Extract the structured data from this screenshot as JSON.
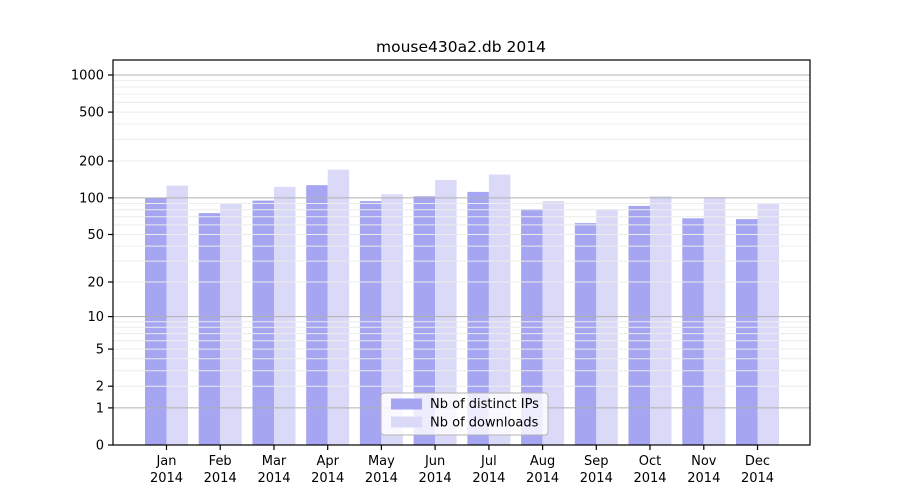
{
  "page": {
    "background": "#ffffff"
  },
  "chart_data": {
    "type": "bar",
    "title": "mouse430a2.db 2014",
    "x": {
      "months": [
        "Jan",
        "Feb",
        "Mar",
        "Apr",
        "May",
        "Jun",
        "Jul",
        "Aug",
        "Sep",
        "Oct",
        "Nov",
        "Dec"
      ],
      "year": "2014"
    },
    "series": [
      {
        "name": "Nb of distinct IPs",
        "color": "#a5a5f2",
        "values": [
          100,
          75,
          95,
          127,
          94,
          103,
          112,
          81,
          62,
          86,
          68,
          67
        ]
      },
      {
        "name": "Nb of downloads",
        "color": "#dadaf8",
        "values": [
          126,
          90,
          123,
          170,
          107,
          140,
          155,
          94,
          81,
          103,
          101,
          90
        ]
      }
    ],
    "yticks": [
      0,
      1,
      2,
      5,
      10,
      20,
      50,
      100,
      200,
      500,
      1000
    ],
    "yscale": "log1p",
    "ylim": [
      0,
      1320
    ],
    "axis_color": "#000000",
    "grid": {
      "on": true,
      "major_color": "#b0b0b0",
      "minor_color": "#ececec"
    },
    "legend": {
      "position": "bottom-center",
      "background": "rgba(255,255,255,0.8)",
      "border_color": "#b3b3b3"
    }
  }
}
